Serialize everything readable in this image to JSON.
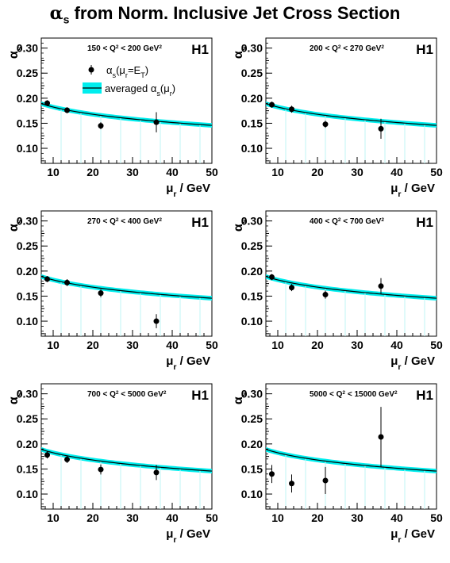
{
  "figure": {
    "title_symbol": "α",
    "title_sub": "s",
    "title_rest": " from Norm. Inclusive Jet Cross Section"
  },
  "legend": {
    "points_label": "αs(μr=ET)",
    "band_label": "averaged αs(μr)",
    "band_color": "#00eeee",
    "line_color": "#000000"
  },
  "chart_data": [
    {
      "type": "scatter",
      "label": "150 < Q² < 200 GeV²",
      "experiment": "H1",
      "xlabel": "μr / GeV",
      "ylabel": "αs",
      "xlim": [
        7,
        50
      ],
      "ylim": [
        0.07,
        0.32
      ],
      "xticks": [
        10,
        20,
        30,
        40,
        50
      ],
      "yticks": [
        0.1,
        0.15,
        0.2,
        0.25,
        0.3
      ],
      "points": [
        {
          "x": 8.5,
          "y": 0.19,
          "err": 0.006
        },
        {
          "x": 13.5,
          "y": 0.176,
          "err": 0.006
        },
        {
          "x": 22.0,
          "y": 0.145,
          "err": 0.007
        },
        {
          "x": 36.0,
          "y": 0.152,
          "err": 0.02
        }
      ]
    },
    {
      "type": "scatter",
      "label": "200 < Q² < 270 GeV²",
      "experiment": "H1",
      "xlabel": "μr / GeV",
      "ylabel": "αs",
      "xlim": [
        7,
        50
      ],
      "ylim": [
        0.07,
        0.32
      ],
      "xticks": [
        10,
        20,
        30,
        40,
        50
      ],
      "yticks": [
        0.1,
        0.15,
        0.2,
        0.25,
        0.3
      ],
      "points": [
        {
          "x": 8.5,
          "y": 0.187,
          "err": 0.006
        },
        {
          "x": 13.5,
          "y": 0.178,
          "err": 0.007
        },
        {
          "x": 22.0,
          "y": 0.148,
          "err": 0.007
        },
        {
          "x": 36.0,
          "y": 0.139,
          "err": 0.02
        }
      ]
    },
    {
      "type": "scatter",
      "label": "270 < Q² < 400 GeV²",
      "experiment": "H1",
      "xlabel": "μr / GeV",
      "ylabel": "αs",
      "xlim": [
        7,
        50
      ],
      "ylim": [
        0.07,
        0.32
      ],
      "xticks": [
        10,
        20,
        30,
        40,
        50
      ],
      "yticks": [
        0.1,
        0.15,
        0.2,
        0.25,
        0.3
      ],
      "points": [
        {
          "x": 8.5,
          "y": 0.184,
          "err": 0.006
        },
        {
          "x": 13.5,
          "y": 0.177,
          "err": 0.007
        },
        {
          "x": 22.0,
          "y": 0.156,
          "err": 0.008
        },
        {
          "x": 36.0,
          "y": 0.1,
          "err": 0.014
        }
      ]
    },
    {
      "type": "scatter",
      "label": "400 < Q² < 700 GeV²",
      "experiment": "H1",
      "xlabel": "μr / GeV",
      "ylabel": "αs",
      "xlim": [
        7,
        50
      ],
      "ylim": [
        0.07,
        0.32
      ],
      "xticks": [
        10,
        20,
        30,
        40,
        50
      ],
      "yticks": [
        0.1,
        0.15,
        0.2,
        0.25,
        0.3
      ],
      "points": [
        {
          "x": 8.5,
          "y": 0.188,
          "err": 0.006
        },
        {
          "x": 13.5,
          "y": 0.167,
          "err": 0.007
        },
        {
          "x": 22.0,
          "y": 0.153,
          "err": 0.008
        },
        {
          "x": 36.0,
          "y": 0.17,
          "err": 0.016
        }
      ]
    },
    {
      "type": "scatter",
      "label": "700 < Q² < 5000 GeV²",
      "experiment": "H1",
      "xlabel": "μr / GeV",
      "ylabel": "αs",
      "xlim": [
        7,
        50
      ],
      "ylim": [
        0.07,
        0.32
      ],
      "xticks": [
        10,
        20,
        30,
        40,
        50
      ],
      "yticks": [
        0.1,
        0.15,
        0.2,
        0.25,
        0.3
      ],
      "points": [
        {
          "x": 8.5,
          "y": 0.178,
          "err": 0.007
        },
        {
          "x": 13.5,
          "y": 0.169,
          "err": 0.007
        },
        {
          "x": 22.0,
          "y": 0.149,
          "err": 0.01
        },
        {
          "x": 36.0,
          "y": 0.143,
          "err": 0.015
        }
      ]
    },
    {
      "type": "scatter",
      "label": "5000 < Q² < 15000 GeV²",
      "experiment": "H1",
      "xlabel": "μr / GeV",
      "ylabel": "αs",
      "xlim": [
        7,
        50
      ],
      "ylim": [
        0.07,
        0.32
      ],
      "xticks": [
        10,
        20,
        30,
        40,
        50
      ],
      "yticks": [
        0.1,
        0.15,
        0.2,
        0.25,
        0.3
      ],
      "points": [
        {
          "x": 8.5,
          "y": 0.14,
          "err": 0.018
        },
        {
          "x": 13.5,
          "y": 0.121,
          "err": 0.018
        },
        {
          "x": 22.0,
          "y": 0.127,
          "err": 0.027
        },
        {
          "x": 36.0,
          "y": 0.214,
          "err": 0.06
        }
      ]
    }
  ]
}
